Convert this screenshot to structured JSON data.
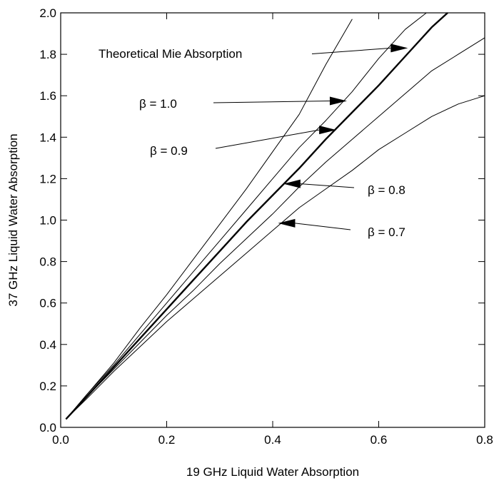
{
  "chart_data": {
    "type": "line",
    "title": "",
    "xlabel": "19 GHz Liquid Water Absorption",
    "ylabel": "37 GHz Liquid Water Absorption",
    "xlim": [
      0.0,
      0.8
    ],
    "ylim": [
      0.0,
      2.0
    ],
    "xticks": [
      "0.0",
      "0.2",
      "0.4",
      "0.6",
      "0.8"
    ],
    "yticks": [
      "0.0",
      "0.2",
      "0.4",
      "0.6",
      "0.8",
      "1.0",
      "1.2",
      "1.4",
      "1.6",
      "1.8",
      "2.0"
    ],
    "grid": false,
    "legend": "none",
    "series": [
      {
        "name": "Theoretical Mie Absorption",
        "style": "bold",
        "x": [
          0.01,
          0.05,
          0.1,
          0.15,
          0.2,
          0.25,
          0.3,
          0.35,
          0.4,
          0.45,
          0.5,
          0.55,
          0.6,
          0.65,
          0.7,
          0.73
        ],
        "y": [
          0.04,
          0.15,
          0.29,
          0.43,
          0.57,
          0.71,
          0.85,
          0.99,
          1.12,
          1.25,
          1.39,
          1.52,
          1.65,
          1.79,
          1.93,
          2.0
        ]
      },
      {
        "name": "β = 1.0",
        "style": "thin",
        "x": [
          0.01,
          0.05,
          0.1,
          0.15,
          0.2,
          0.25,
          0.3,
          0.35,
          0.4,
          0.45,
          0.5,
          0.55
        ],
        "y": [
          0.04,
          0.16,
          0.31,
          0.48,
          0.64,
          0.81,
          0.98,
          1.15,
          1.33,
          1.51,
          1.75,
          1.97
        ]
      },
      {
        "name": "β = 0.9",
        "style": "thin",
        "x": [
          0.01,
          0.05,
          0.1,
          0.15,
          0.2,
          0.25,
          0.3,
          0.35,
          0.4,
          0.45,
          0.5,
          0.55,
          0.6,
          0.65,
          0.69
        ],
        "y": [
          0.04,
          0.16,
          0.3,
          0.45,
          0.6,
          0.75,
          0.9,
          1.05,
          1.2,
          1.35,
          1.48,
          1.62,
          1.78,
          1.92,
          2.0
        ]
      },
      {
        "name": "β = 0.8",
        "style": "thin",
        "x": [
          0.01,
          0.05,
          0.1,
          0.15,
          0.2,
          0.25,
          0.3,
          0.35,
          0.4,
          0.45,
          0.5,
          0.55,
          0.6,
          0.65,
          0.7,
          0.75,
          0.8
        ],
        "y": [
          0.04,
          0.15,
          0.28,
          0.41,
          0.54,
          0.66,
          0.79,
          0.91,
          1.03,
          1.16,
          1.28,
          1.39,
          1.5,
          1.61,
          1.72,
          1.8,
          1.88
        ]
      },
      {
        "name": "β = 0.7",
        "style": "thin",
        "x": [
          0.01,
          0.05,
          0.1,
          0.15,
          0.2,
          0.25,
          0.3,
          0.35,
          0.4,
          0.45,
          0.5,
          0.55,
          0.6,
          0.65,
          0.7,
          0.75,
          0.8
        ],
        "y": [
          0.04,
          0.14,
          0.27,
          0.39,
          0.51,
          0.62,
          0.73,
          0.84,
          0.95,
          1.06,
          1.15,
          1.24,
          1.34,
          1.42,
          1.5,
          1.56,
          1.6
        ]
      }
    ],
    "annotations": [
      {
        "text": "Theoretical Mie Absorption",
        "points_to": [
          0.655,
          1.83
        ]
      },
      {
        "text": "β = 1.0",
        "points_to": [
          0.54,
          1.575
        ]
      },
      {
        "text": "β = 0.9",
        "points_to": [
          0.52,
          1.435
        ]
      },
      {
        "text": "β = 0.8",
        "points_to": [
          0.42,
          1.175
        ]
      },
      {
        "text": "β = 0.7",
        "points_to": [
          0.41,
          0.985
        ]
      }
    ]
  }
}
